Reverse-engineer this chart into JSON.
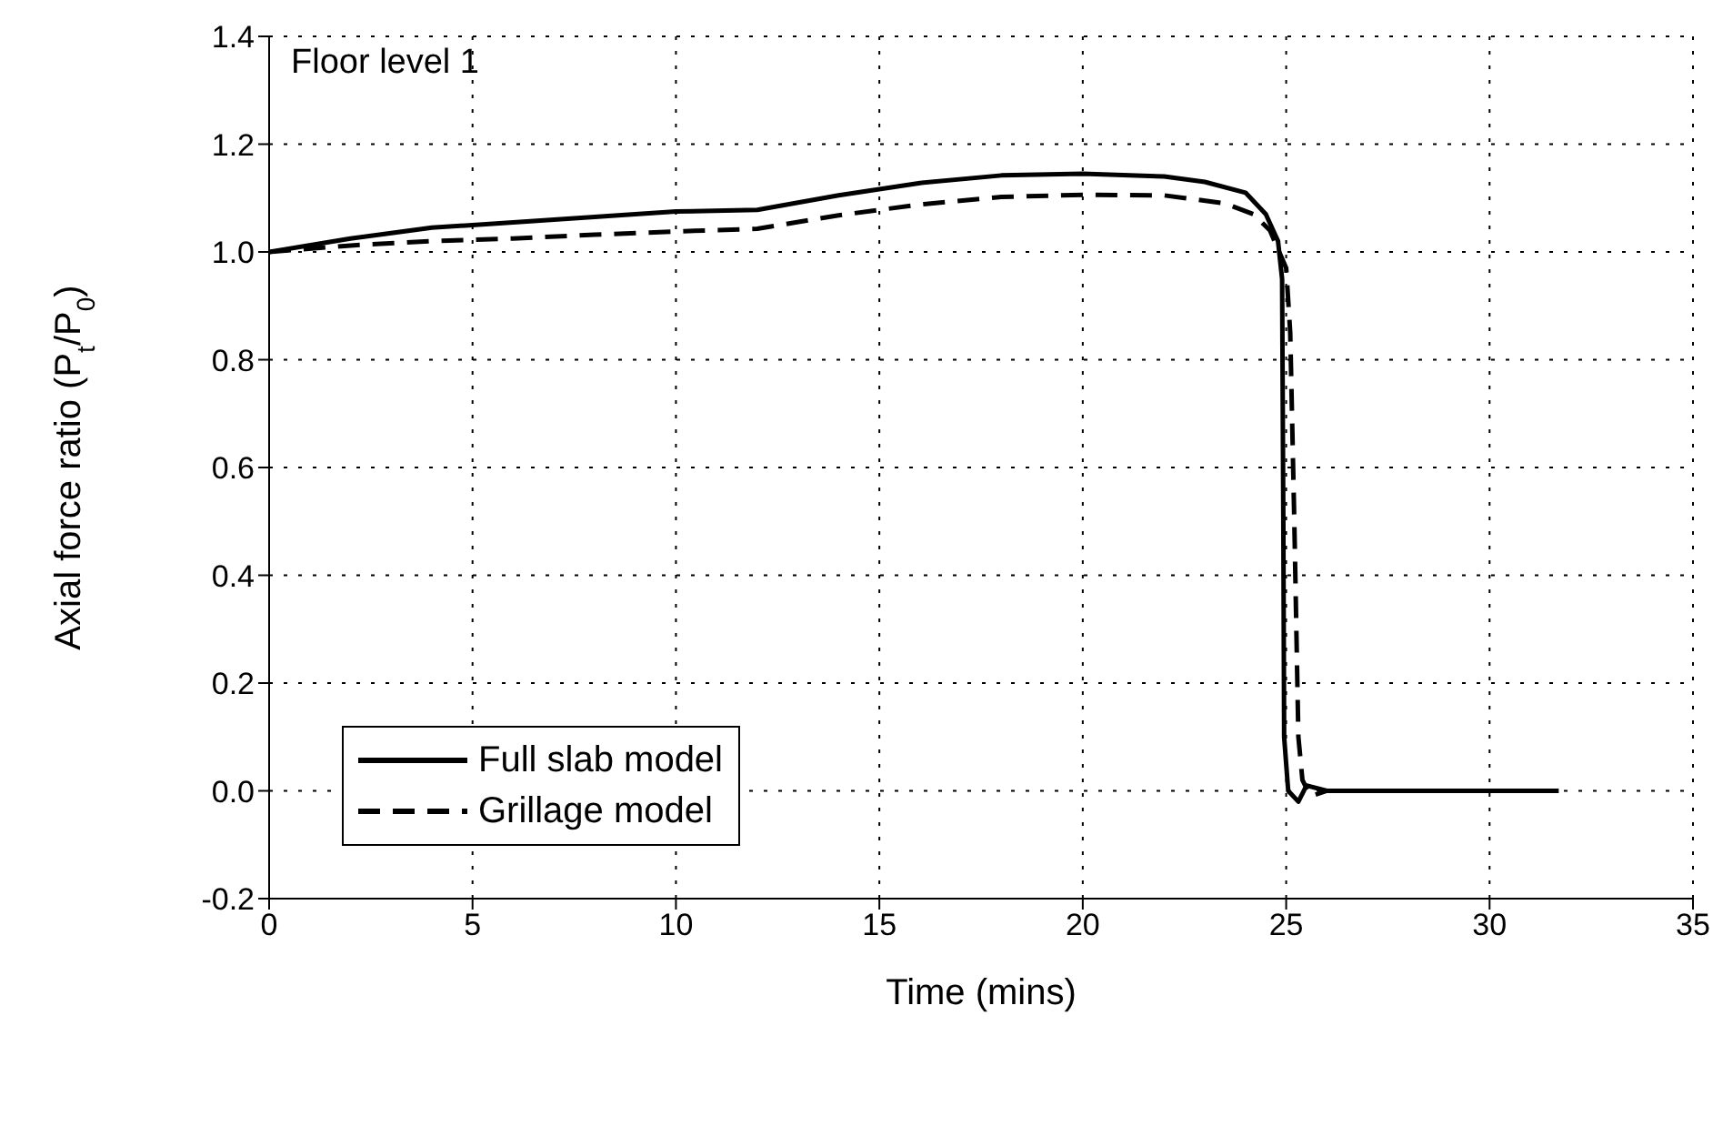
{
  "chart_data": {
    "type": "line",
    "xlabel": "Time (mins)",
    "ylabel": "Axial force ratio (P$_{t}$/P$_{0}$)",
    "annotations": [
      "Floor level 1"
    ],
    "xlim": [
      0,
      35
    ],
    "xticks": [
      0,
      5,
      10,
      15,
      20,
      25,
      30,
      35
    ],
    "ylim": [
      -0.2,
      1.4
    ],
    "yticks": [
      -0.2,
      {
        "value": 0,
        "label": "0.0"
      },
      0.2,
      0.4,
      0.6,
      0.8,
      {
        "value": 1,
        "label": "1.0"
      },
      1.2,
      1.4
    ],
    "grid": true,
    "legend": "bottom left",
    "series": [
      {
        "name": "Full slab model",
        "color": "#000000",
        "line_style": "solid",
        "x": [
          0,
          2,
          4,
          6,
          8,
          10,
          12,
          14,
          16,
          18,
          20,
          22,
          23,
          24,
          24.5,
          24.8,
          24.9,
          24.93,
          24.95,
          25.05,
          25.3,
          25.5,
          26,
          27,
          31.7
        ],
        "values": [
          1.0,
          1.025,
          1.045,
          1.055,
          1.065,
          1.075,
          1.078,
          1.105,
          1.128,
          1.142,
          1.145,
          1.14,
          1.13,
          1.11,
          1.07,
          1.02,
          0.95,
          0.5,
          0.1,
          0.0,
          -0.02,
          0.01,
          0.0,
          0.0,
          0.0
        ]
      },
      {
        "name": "Grillage model",
        "color": "#000000",
        "line_style": "dashed",
        "x": [
          0,
          2,
          4,
          6,
          8,
          10,
          12,
          14,
          16,
          18,
          20,
          22,
          23.5,
          24.2,
          24.6,
          25.0,
          25.1,
          25.2,
          25.3,
          25.4,
          25.6,
          26
        ],
        "values": [
          1.0,
          1.012,
          1.02,
          1.025,
          1.032,
          1.038,
          1.043,
          1.068,
          1.088,
          1.102,
          1.106,
          1.105,
          1.09,
          1.07,
          1.04,
          0.97,
          0.85,
          0.5,
          0.1,
          0.02,
          -0.01,
          0.0
        ]
      }
    ]
  }
}
